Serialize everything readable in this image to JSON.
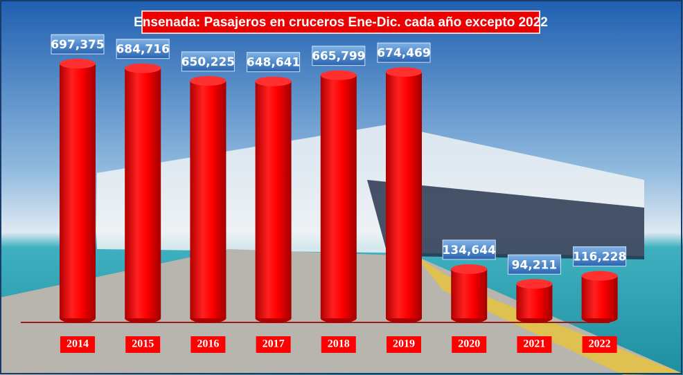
{
  "chart_data": {
    "type": "bar",
    "title": "Ensenada: Pasajeros en cruceros  Ene-Dic. cada año excepto 2022",
    "categories": [
      "2014",
      "2015",
      "2016",
      "2017",
      "2018",
      "2019",
      "2020",
      "2021",
      "2022"
    ],
    "values": [
      697375,
      684716,
      650225,
      648641,
      665799,
      674469,
      134644,
      94211,
      116228
    ],
    "value_labels": [
      "697,375",
      "684,716",
      "650,225",
      "648,641",
      "665,799",
      "674,469",
      "134,644",
      "94,211",
      "116,228"
    ],
    "color": "#ff0000"
  }
}
